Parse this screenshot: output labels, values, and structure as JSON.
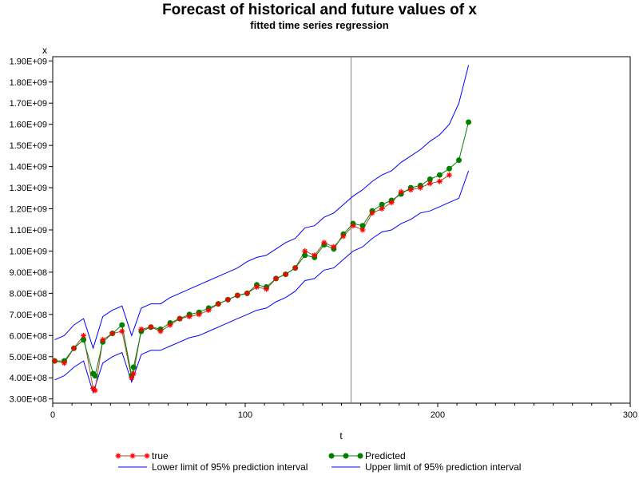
{
  "chart_data": {
    "type": "line",
    "title": "Forecast of historical and future values of x",
    "subtitle": "fitted time series regression",
    "xlabel": "t",
    "ylabel": "x",
    "xlim": [
      0,
      300
    ],
    "ylim": [
      280000000,
      1920000000
    ],
    "x_ticks": [
      0,
      100,
      200,
      300
    ],
    "y_ticks": [
      300000000,
      400000000,
      500000000,
      600000000,
      700000000,
      800000000,
      900000000,
      1000000000,
      1100000000,
      1200000000,
      1300000000,
      1400000000,
      1500000000,
      1600000000,
      1700000000,
      1800000000,
      1900000000
    ],
    "y_tick_labels": [
      "3.00E+08",
      "4.00E+08",
      "5.00E+08",
      "6.00E+08",
      "7.00E+08",
      "8.00E+08",
      "9.00E+08",
      "1.00E+09",
      "1.10E+09",
      "1.20E+09",
      "1.30E+09",
      "1.40E+09",
      "1.50E+09",
      "1.60E+09",
      "1.70E+09",
      "1.80E+09",
      "1.90E+09"
    ],
    "x_tick_labels": [
      "0",
      "100",
      "200",
      "300"
    ],
    "reference_line_x": 155,
    "grid": false,
    "legend_position": "bottom",
    "colors": {
      "true": "#ff0000",
      "true_line": "#a0522d",
      "predicted": "#008000",
      "limits": "#0000ff",
      "ref_line": "#808080"
    },
    "series": [
      {
        "name": "true",
        "marker": "star",
        "x": [
          1,
          6,
          11,
          16,
          21,
          22,
          26,
          31,
          36,
          41,
          42,
          46,
          51,
          56,
          61,
          66,
          71,
          76,
          81,
          86,
          91,
          96,
          101,
          106,
          111,
          116,
          121,
          126,
          131,
          136,
          141,
          146,
          151,
          156,
          161,
          166,
          171,
          176,
          181,
          186,
          191,
          196,
          201,
          206
        ],
        "values": [
          480000000,
          470000000,
          540000000,
          600000000,
          350000000,
          340000000,
          580000000,
          610000000,
          620000000,
          400000000,
          420000000,
          630000000,
          640000000,
          620000000,
          650000000,
          680000000,
          690000000,
          700000000,
          720000000,
          750000000,
          770000000,
          790000000,
          800000000,
          830000000,
          820000000,
          870000000,
          890000000,
          920000000,
          1000000000,
          980000000,
          1040000000,
          1020000000,
          1070000000,
          1120000000,
          1100000000,
          1180000000,
          1200000000,
          1230000000,
          1280000000,
          1290000000,
          1300000000,
          1320000000,
          1330000000,
          1360000000
        ]
      },
      {
        "name": "Predicted",
        "marker": "dot",
        "x": [
          1,
          6,
          11,
          16,
          21,
          22,
          26,
          31,
          36,
          41,
          42,
          46,
          51,
          56,
          61,
          66,
          71,
          76,
          81,
          86,
          91,
          96,
          101,
          106,
          111,
          116,
          121,
          126,
          131,
          136,
          141,
          146,
          151,
          156,
          161,
          166,
          171,
          176,
          181,
          186,
          191,
          196,
          201,
          206,
          211,
          216
        ],
        "values": [
          480000000,
          480000000,
          540000000,
          580000000,
          420000000,
          410000000,
          570000000,
          610000000,
          650000000,
          410000000,
          450000000,
          620000000,
          640000000,
          630000000,
          660000000,
          680000000,
          700000000,
          710000000,
          730000000,
          750000000,
          770000000,
          790000000,
          800000000,
          840000000,
          830000000,
          870000000,
          890000000,
          920000000,
          980000000,
          970000000,
          1030000000,
          1010000000,
          1080000000,
          1130000000,
          1120000000,
          1190000000,
          1220000000,
          1240000000,
          1270000000,
          1300000000,
          1310000000,
          1340000000,
          1360000000,
          1390000000,
          1430000000,
          1610000000
        ]
      },
      {
        "name": "Lower limit of 95% prediction interval",
        "x": [
          1,
          6,
          11,
          16,
          21,
          26,
          31,
          36,
          41,
          46,
          51,
          56,
          61,
          66,
          71,
          76,
          81,
          86,
          91,
          96,
          101,
          106,
          111,
          116,
          121,
          126,
          131,
          136,
          141,
          146,
          151,
          156,
          161,
          166,
          171,
          176,
          181,
          186,
          191,
          196,
          201,
          206,
          211,
          216
        ],
        "values": [
          390000000,
          410000000,
          450000000,
          480000000,
          330000000,
          470000000,
          500000000,
          520000000,
          380000000,
          510000000,
          530000000,
          530000000,
          550000000,
          570000000,
          590000000,
          600000000,
          620000000,
          640000000,
          660000000,
          680000000,
          700000000,
          720000000,
          730000000,
          760000000,
          780000000,
          810000000,
          860000000,
          870000000,
          910000000,
          920000000,
          960000000,
          1000000000,
          1020000000,
          1060000000,
          1090000000,
          1100000000,
          1130000000,
          1150000000,
          1180000000,
          1190000000,
          1210000000,
          1230000000,
          1250000000,
          1380000000
        ]
      },
      {
        "name": "Upper limit of 95% prediction interval",
        "x": [
          1,
          6,
          11,
          16,
          21,
          26,
          31,
          36,
          41,
          46,
          51,
          56,
          61,
          66,
          71,
          76,
          81,
          86,
          91,
          96,
          101,
          106,
          111,
          116,
          121,
          126,
          131,
          136,
          141,
          146,
          151,
          156,
          161,
          166,
          171,
          176,
          181,
          186,
          191,
          196,
          201,
          206,
          211,
          216
        ],
        "values": [
          580000000,
          600000000,
          650000000,
          680000000,
          540000000,
          690000000,
          720000000,
          740000000,
          600000000,
          730000000,
          750000000,
          750000000,
          780000000,
          800000000,
          820000000,
          840000000,
          860000000,
          880000000,
          900000000,
          920000000,
          950000000,
          970000000,
          980000000,
          1010000000,
          1040000000,
          1060000000,
          1110000000,
          1120000000,
          1160000000,
          1180000000,
          1220000000,
          1260000000,
          1290000000,
          1330000000,
          1360000000,
          1380000000,
          1420000000,
          1450000000,
          1480000000,
          1520000000,
          1550000000,
          1600000000,
          1700000000,
          1880000000
        ]
      }
    ]
  }
}
